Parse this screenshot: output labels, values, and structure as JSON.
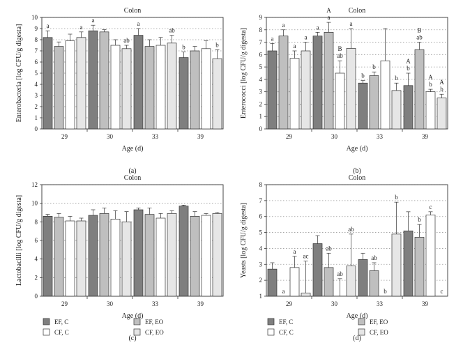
{
  "legend": [
    {
      "series": "EF, C",
      "label": "EF, C",
      "color": "#7f7f7f"
    },
    {
      "series": "EF, EO",
      "label": "EF, EO",
      "color": "#bfbfbf"
    },
    {
      "series": "CF, C",
      "label": "CF, C",
      "color": "#ffffff"
    },
    {
      "series": "CF, EO",
      "label": "CF, EO",
      "color": "#e6e6e6"
    }
  ],
  "chart_data": [
    {
      "type": "bar",
      "panel_label": "(a)",
      "title": "Colon",
      "xlabel": "Age (d)",
      "ylabel": "Enterobacteria [log CFU/g digesta]",
      "ylim": [
        0,
        10
      ],
      "yticks": [
        0,
        1,
        2,
        3,
        4,
        5,
        6,
        7,
        8,
        9,
        10
      ],
      "grid": true,
      "categories": [
        "29",
        "30",
        "33",
        "39"
      ],
      "series": [
        {
          "name": "EF, C",
          "values": [
            8.2,
            8.8,
            8.4,
            6.4
          ],
          "errors": [
            0.6,
            0.5,
            0.6,
            0.5
          ],
          "labels": [
            "a",
            "a",
            "a",
            "b"
          ]
        },
        {
          "name": "EF, EO",
          "values": [
            7.4,
            8.7,
            7.4,
            7.0
          ],
          "errors": [
            0.4,
            0.2,
            0.6,
            0.4
          ],
          "labels": [
            "",
            "",
            "",
            ""
          ]
        },
        {
          "name": "CF, C",
          "values": [
            7.9,
            7.5,
            7.5,
            7.2
          ],
          "errors": [
            0.6,
            0.5,
            0.7,
            0.7
          ],
          "labels": [
            "",
            "",
            "",
            ""
          ]
        },
        {
          "name": "CF, EO",
          "values": [
            8.2,
            7.2,
            7.7,
            6.3
          ],
          "errors": [
            0.5,
            0.3,
            0.7,
            0.8
          ],
          "labels": [
            "a",
            "ab",
            "ab",
            "b"
          ]
        }
      ]
    },
    {
      "type": "bar",
      "panel_label": "(b)",
      "title": "Colon",
      "xlabel": "Age (d)",
      "ylabel": "Enterococci [log CFU/g digesta]",
      "ylim": [
        0,
        9
      ],
      "yticks": [
        0,
        1,
        2,
        3,
        4,
        5,
        6,
        7,
        8,
        9
      ],
      "grid": true,
      "categories": [
        "29",
        "30",
        "33",
        "39"
      ],
      "series": [
        {
          "name": "EF, C",
          "values": [
            6.3,
            7.5,
            3.7,
            3.5
          ],
          "errors": [
            0.6,
            0.3,
            0.2,
            1.0
          ],
          "labels": [
            "a",
            "a",
            "b",
            "A\nb"
          ]
        },
        {
          "name": "EF, EO",
          "values": [
            7.5,
            7.8,
            4.3,
            6.4
          ],
          "errors": [
            0.5,
            0.8,
            0.3,
            0.6
          ],
          "labels": [
            "a",
            "A\na",
            "b",
            "B\nab"
          ]
        },
        {
          "name": "CF, C",
          "values": [
            5.7,
            4.5,
            5.5,
            3.0
          ],
          "errors": [
            0.6,
            1.0,
            2.6,
            0.2
          ],
          "labels": [
            "a",
            "B\nab",
            "",
            "A\nb"
          ]
        },
        {
          "name": "CF, EO",
          "values": [
            6.3,
            6.5,
            3.1,
            2.5
          ],
          "errors": [
            0.7,
            1.6,
            0.6,
            0.3
          ],
          "labels": [
            "a",
            "a",
            "b",
            "A\nb"
          ]
        }
      ]
    },
    {
      "type": "bar",
      "panel_label": "(c)",
      "title": "Colon",
      "xlabel": "Age (d)",
      "ylabel": "Lactobacilli [log CFU/g digesta]",
      "ylim": [
        0,
        12
      ],
      "yticks": [
        0,
        2,
        4,
        6,
        8,
        10,
        12
      ],
      "grid": true,
      "categories": [
        "29",
        "30",
        "33",
        "39"
      ],
      "series": [
        {
          "name": "EF, C",
          "values": [
            8.6,
            8.7,
            9.3,
            9.7
          ],
          "errors": [
            0.2,
            0.6,
            0.2,
            0.1
          ],
          "labels": [
            "",
            "",
            "",
            ""
          ]
        },
        {
          "name": "EF, EO",
          "values": [
            8.5,
            8.9,
            8.8,
            8.6
          ],
          "errors": [
            0.4,
            0.6,
            0.7,
            0.5
          ],
          "labels": [
            "",
            "",
            "",
            ""
          ]
        },
        {
          "name": "CF, C",
          "values": [
            8.1,
            8.3,
            8.4,
            8.7
          ],
          "errors": [
            0.5,
            0.9,
            0.5,
            0.2
          ],
          "labels": [
            "",
            "",
            "",
            ""
          ]
        },
        {
          "name": "CF, EO",
          "values": [
            8.1,
            8.0,
            8.9,
            8.9
          ],
          "errors": [
            0.3,
            1.1,
            0.3,
            0.1
          ],
          "labels": [
            "",
            "",
            "",
            ""
          ]
        }
      ]
    },
    {
      "type": "bar",
      "panel_label": "(d)",
      "title": "Colon",
      "xlabel": "Age (d)",
      "ylabel": "Yeasts [log CFU/g digesta]",
      "ylim": [
        1,
        8
      ],
      "yticks": [
        1,
        2,
        3,
        4,
        5,
        6,
        7,
        8
      ],
      "grid": true,
      "categories": [
        "29",
        "30",
        "33",
        "39"
      ],
      "series": [
        {
          "name": "EF, C",
          "values": [
            2.7,
            4.3,
            3.3,
            5.1
          ],
          "errors": [
            0.4,
            0.5,
            0.4,
            1.2
          ],
          "labels": [
            "",
            "",
            "",
            ""
          ]
        },
        {
          "name": "EF, EO",
          "values": [
            1.0,
            2.8,
            2.6,
            4.7
          ],
          "errors": [
            0,
            0.9,
            0.5,
            0.8
          ],
          "labels": [
            "a",
            "ab",
            "ab",
            "b"
          ]
        },
        {
          "name": "CF, C",
          "values": [
            2.8,
            1.0,
            1.0,
            6.1
          ],
          "errors": [
            0.7,
            1.1,
            0,
            0.2
          ],
          "labels": [
            "a",
            "ab",
            "b",
            "c"
          ]
        },
        {
          "name": "CF, EO",
          "values": [
            1.2,
            2.9,
            4.9,
            1.0
          ],
          "errors": [
            2.0,
            2.0,
            2.0,
            0
          ],
          "labels": [
            "ac",
            "ab",
            "b",
            "c"
          ]
        }
      ]
    }
  ]
}
